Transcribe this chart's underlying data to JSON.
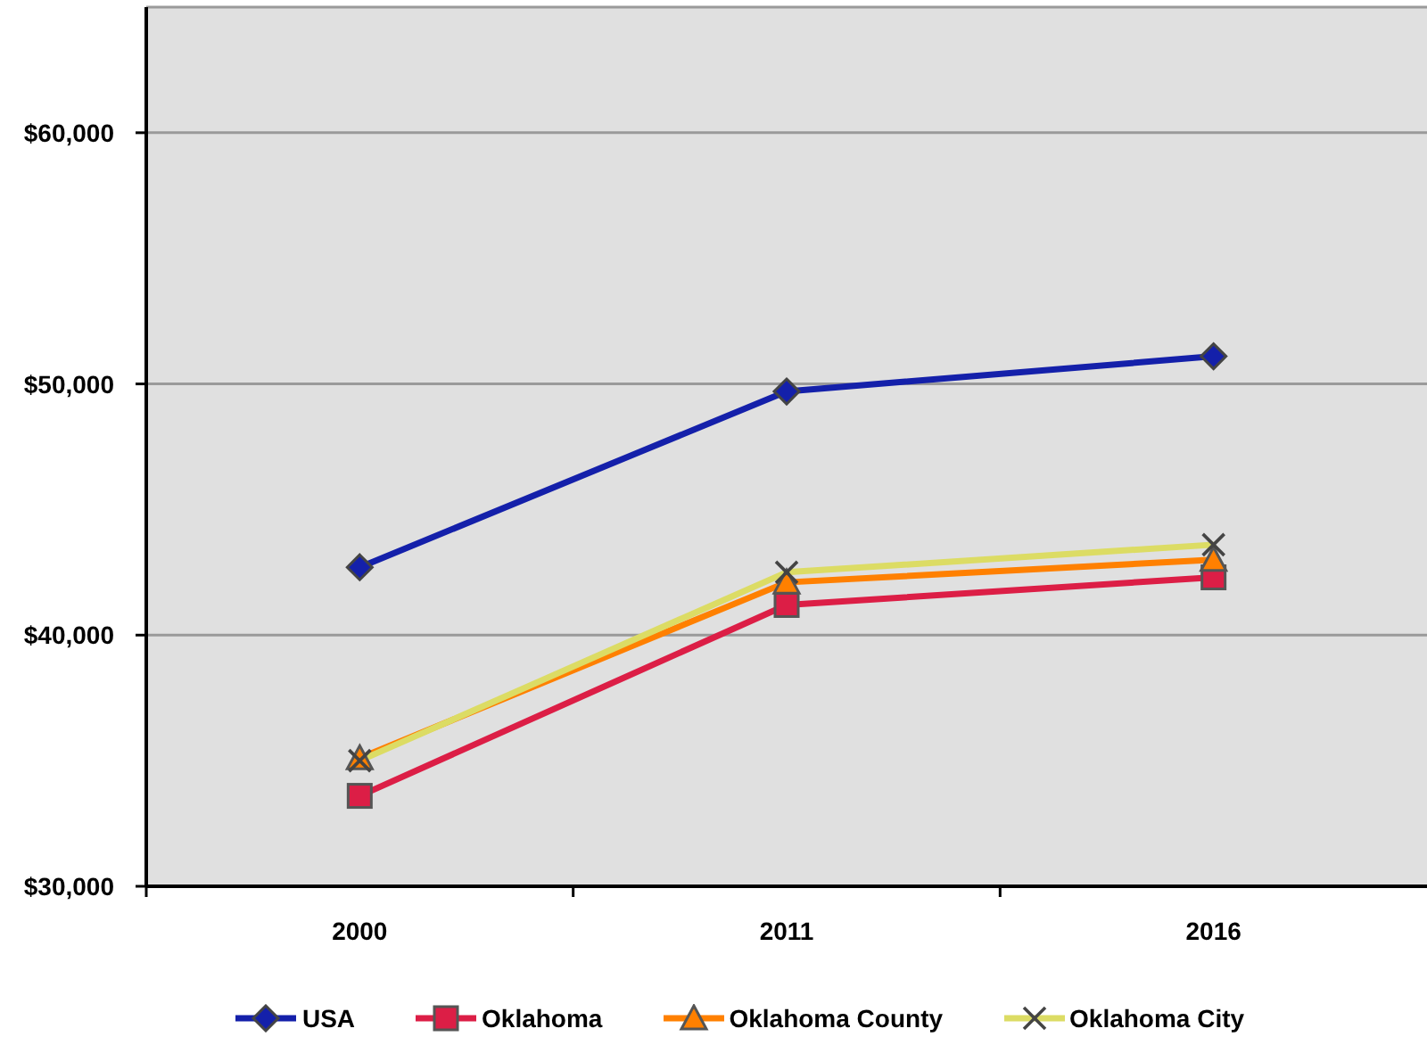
{
  "chart_data": {
    "type": "line",
    "categories": [
      "2000",
      "2011",
      "2016"
    ],
    "series": [
      {
        "name": "USA",
        "color": "#1420aa",
        "marker": "diamond",
        "values": [
          42700,
          49700,
          51100
        ]
      },
      {
        "name": "Oklahoma",
        "color": "#dc1e46",
        "marker": "square",
        "values": [
          33600,
          41200,
          42300
        ]
      },
      {
        "name": "Oklahoma County",
        "color": "#ff8000",
        "marker": "triangle",
        "values": [
          35100,
          42100,
          43000
        ]
      },
      {
        "name": "Oklahoma City",
        "color": "#dcdc64",
        "marker": "cross",
        "values": [
          35000,
          42500,
          43600
        ]
      }
    ],
    "ylim": [
      30000,
      65000
    ],
    "yticks": [
      {
        "value": 30000,
        "label": "$30,000"
      },
      {
        "value": 40000,
        "label": "$40,000"
      },
      {
        "value": 50000,
        "label": "$50,000"
      },
      {
        "value": 60000,
        "label": "$60,000"
      }
    ],
    "grid": "y",
    "legend": "bottom",
    "line_style": "solid"
  }
}
